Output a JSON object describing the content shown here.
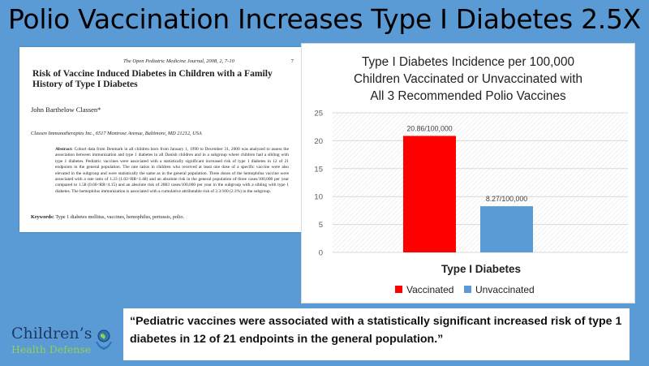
{
  "slide": {
    "title": "Polio Vaccination Increases Type I Diabetes 2.5X"
  },
  "paper": {
    "journal": "The Open Pediatric Medicine Journal, 2008, 2, 7-10",
    "page": "7",
    "title": "Risk of Vaccine Induced Diabetes in Children with a Family History of Type I Diabetes",
    "author": "John Barthelow Classen*",
    "affiliation": "Classen Immunotherapies Inc., 6517 Montrose Avenue, Baltimore, MD 21212, USA",
    "abstract_label": "Abstract:",
    "abstract_text": "Cohort data from Denmark in all children born from January 1, 1990 to December 31, 2000 was analyzed to assess the association between immunization and type 1 diabetes in all Danish children and in a subgroup where children had a sibling with type 1 diabetes. Pediatric vaccines were associated with a statistically significant increased risk of type 1 diabetes in 12 of 21 endpoints in the general population. The rate ratios in children who received at least one dose of a specific vaccine were also elevated in the subgroup and were statistically the same as in the general population. Three doses of the hemophilus vaccine were associated with a rate ratio of 1.23 (1.02<RR<1.48) and an absolute risk in the general population of three cases/100,000 per year compared to 1.58 (0.60<RR<4.15) and an absolute risk of 2883 cases/100,000 per year in the subgroup with a sibling with type 1 diabetes. The hemophilus immunization is associated with a cumulative attributable risk of 2.3/100 (2.3%) in the subgroup.",
    "keywords_label": "Keywords:",
    "keywords_text": "Type 1 diabetes mellitus, vaccines, hemophilus, pertussis, polio."
  },
  "chart": {
    "title_lines": [
      "Type I Diabetes Incidence per 100,000",
      "Children Vaccinated or Unvaccinated with",
      "All 3 Recommended Polio Vaccines"
    ]
  },
  "chart_data": {
    "type": "bar",
    "title": "Type I Diabetes Incidence per 100,000 Children Vaccinated or Unvaccinated with All 3 Recommended Polio Vaccines",
    "xlabel": "Type I Diabetes",
    "ylabel": "",
    "categories": [
      "Type I Diabetes"
    ],
    "series": [
      {
        "name": "Vaccinated",
        "values": [
          20.86
        ],
        "label": "20.86/100,000",
        "color": "#ff0000"
      },
      {
        "name": "Unvaccinated",
        "values": [
          8.27
        ],
        "label": "8.27/100,000",
        "color": "#5b9bd5"
      }
    ],
    "ylim": [
      0,
      25
    ],
    "yticks": [
      0,
      5,
      10,
      15,
      20,
      25
    ],
    "grid": true,
    "legend": "bottom",
    "background": "hatched"
  },
  "quote": {
    "text": "“Pediatric vaccines were associated with a statistically significant increased risk of type 1 diabetes in 12 of 21 endpoints in the general population.”"
  },
  "logo": {
    "line1": "Children’s",
    "line2": "Health Defense",
    "icon": "globe-hands-icon",
    "colors": {
      "primary": "#1f3864",
      "accent": "#92d050"
    }
  },
  "colors": {
    "background": "#5b9bd5"
  }
}
